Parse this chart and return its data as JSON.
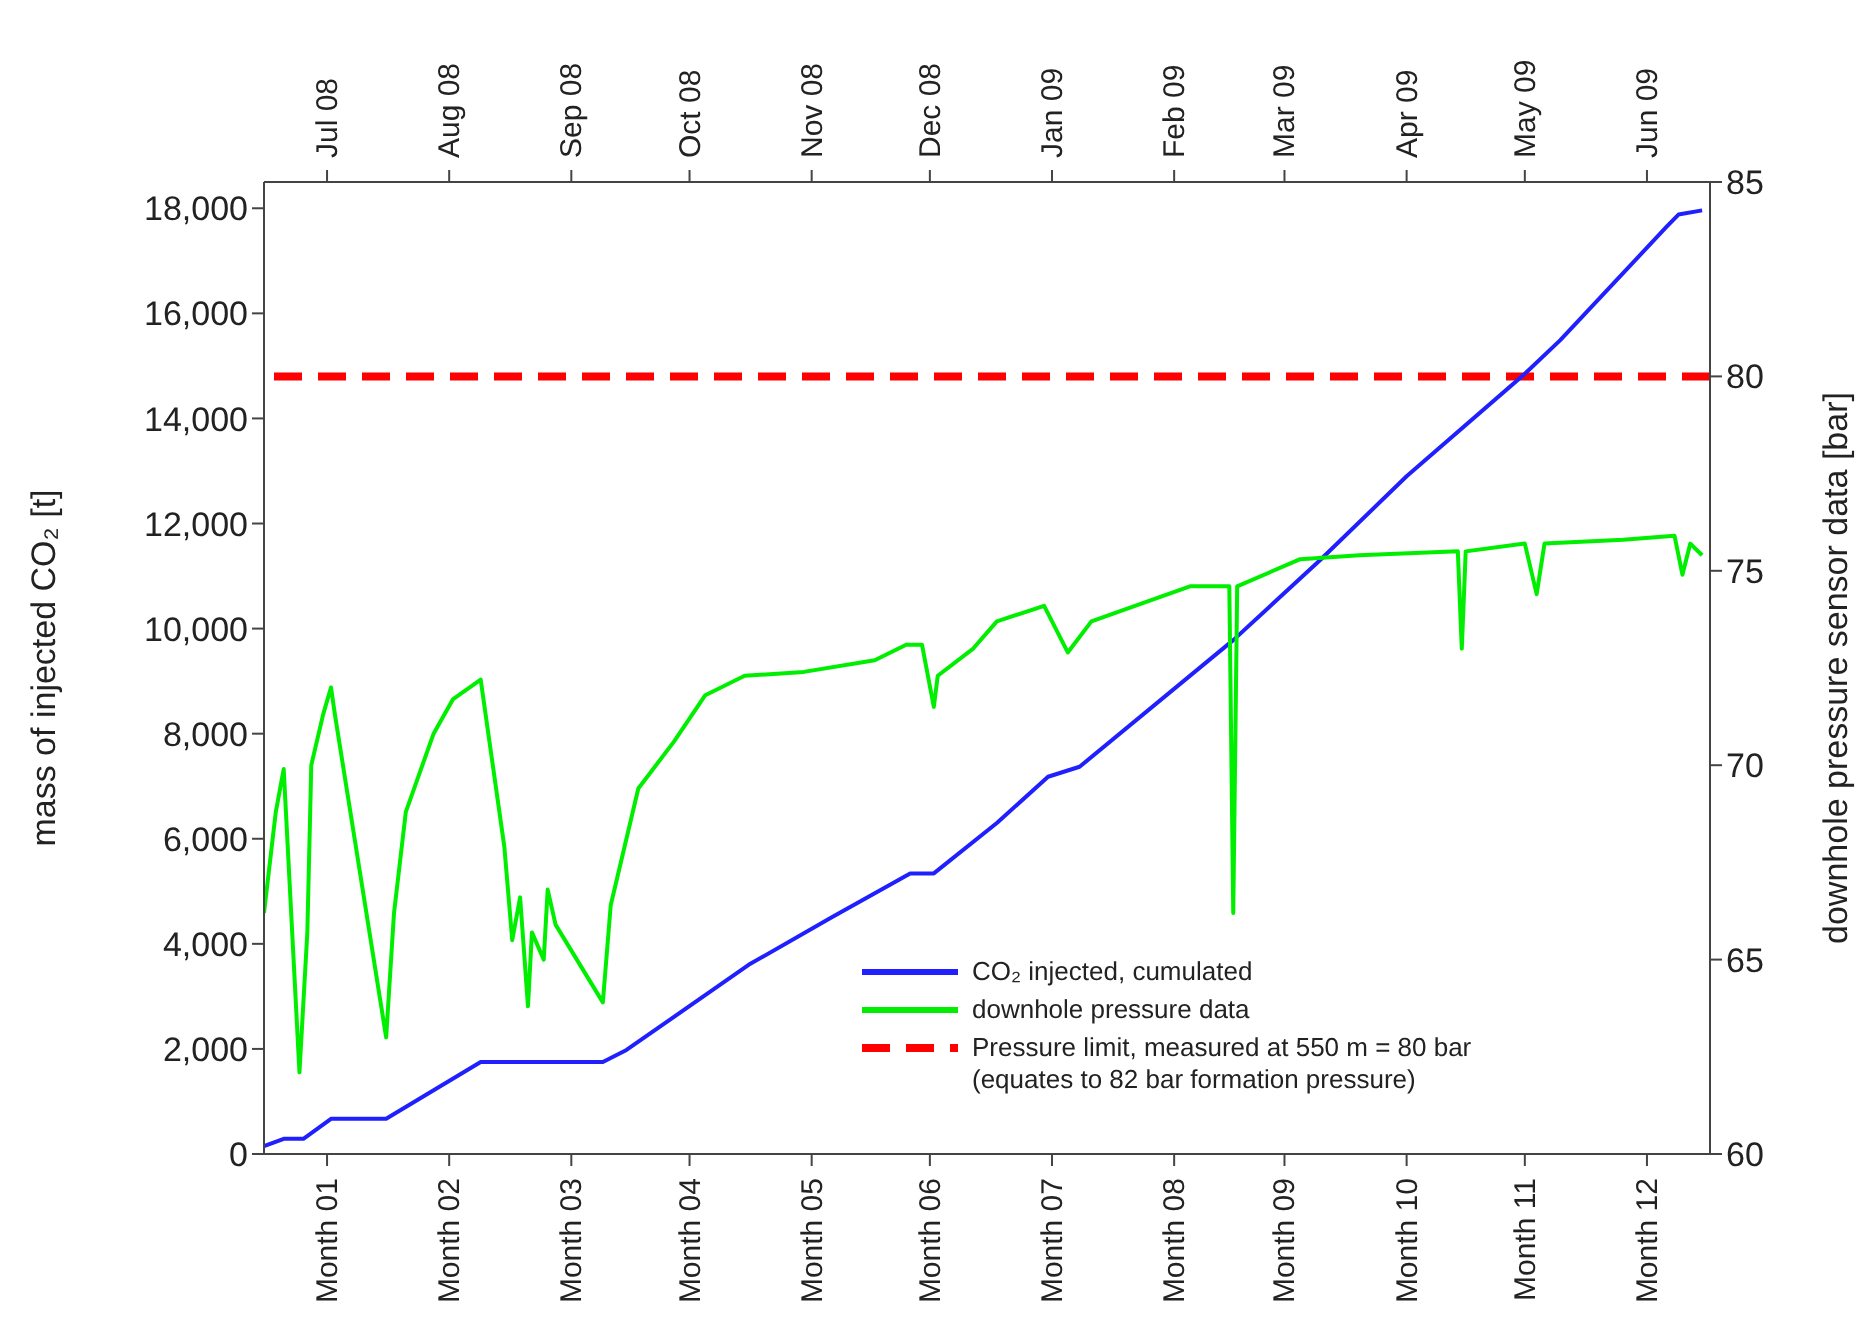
{
  "chart_data": {
    "type": "line",
    "ylabel": "mass of injected CO₂ [t]",
    "y2label": "downhole pressure sensor data [bar]",
    "xlim": [
      "2008-06-15",
      "2009-06-17"
    ],
    "xticks": [
      {
        "value": "2008-07-01",
        "label": "Month 01"
      },
      {
        "value": "2008-08-01",
        "label": "Month 02"
      },
      {
        "value": "2008-09-01",
        "label": "Month 03"
      },
      {
        "value": "2008-10-01",
        "label": "Month 04"
      },
      {
        "value": "2008-11-01",
        "label": "Month 05"
      },
      {
        "value": "2008-12-01",
        "label": "Month 06"
      },
      {
        "value": "2009-01-01",
        "label": "Month 07"
      },
      {
        "value": "2009-02-01",
        "label": "Month 08"
      },
      {
        "value": "2009-03-01",
        "label": "Month 09"
      },
      {
        "value": "2009-04-01",
        "label": "Month 10"
      },
      {
        "value": "2009-05-01",
        "label": "Month 11"
      },
      {
        "value": "2009-06-01",
        "label": "Month 12"
      }
    ],
    "x2lim": [
      "2008-06-15",
      "2009-06-17"
    ],
    "x2ticks": [
      {
        "value": "2008-07-01",
        "label": "Jul 08"
      },
      {
        "value": "2008-08-01",
        "label": "Aug 08"
      },
      {
        "value": "2008-09-01",
        "label": "Sep 08"
      },
      {
        "value": "2008-10-01",
        "label": "Oct 08"
      },
      {
        "value": "2008-11-01",
        "label": "Nov 08"
      },
      {
        "value": "2008-12-01",
        "label": "Dec 08"
      },
      {
        "value": "2009-01-01",
        "label": "Jan 09"
      },
      {
        "value": "2009-02-01",
        "label": "Feb 09"
      },
      {
        "value": "2009-03-01",
        "label": "Mar 09"
      },
      {
        "value": "2009-04-01",
        "label": "Apr 09"
      },
      {
        "value": "2009-05-01",
        "label": "May 09"
      },
      {
        "value": "2009-06-01",
        "label": "Jun 09"
      }
    ],
    "ylim": [
      0,
      18500
    ],
    "yticks": [
      0,
      {
        "value": 2000,
        "label": "2,000"
      },
      {
        "value": 4000,
        "label": "4,000"
      },
      {
        "value": 6000,
        "label": "6,000"
      },
      {
        "value": 8000,
        "label": "8,000"
      },
      {
        "value": 10000,
        "label": "10,000"
      },
      {
        "value": 12000,
        "label": "12,000"
      },
      {
        "value": 14000,
        "label": "14,000"
      },
      {
        "value": 16000,
        "label": "16,000"
      },
      {
        "value": 18000,
        "label": "18,000"
      }
    ],
    "y2lim": [
      60,
      85
    ],
    "y2ticks": [
      60,
      65,
      70,
      75,
      80,
      85
    ],
    "legend": "bottom right",
    "marker": "none",
    "series": [
      {
        "name": "CO₂ injected, cumulated",
        "color": "#2020ff",
        "x": [
          "2008-06-15",
          "2008-06-20",
          "2008-06-25",
          "2008-07-02",
          "2008-07-16",
          "2008-08-09",
          "2008-09-09",
          "2008-09-15",
          "2008-10-16",
          "2008-11-06",
          "2008-11-26",
          "2008-12-02",
          "2008-12-18",
          "2008-12-31",
          "2009-01-08",
          "2009-02-16",
          "2009-03-10",
          "2009-04-01",
          "2009-05-01",
          "2009-05-10",
          "2009-06-06",
          "2009-06-09",
          "2009-06-15"
        ],
        "values": [
          150,
          290,
          290,
          670,
          670,
          1750,
          1750,
          1980,
          3600,
          4500,
          5340,
          5340,
          6300,
          7180,
          7370,
          9780,
          11300,
          12900,
          14850,
          15490,
          17650,
          17880,
          17960
        ]
      },
      {
        "name": "downhole pressure data",
        "color": "#00ee00",
        "axis": "y2",
        "x": [
          "2008-06-15",
          "2008-06-18",
          "2008-06-20",
          "2008-06-24",
          "2008-06-26",
          "2008-06-27",
          "2008-06-30",
          "2008-07-02",
          "2008-07-03",
          "2008-07-16",
          "2008-07-18",
          "2008-07-21",
          "2008-07-28",
          "2008-08-02",
          "2008-08-09",
          "2008-08-15",
          "2008-08-17",
          "2008-08-19",
          "2008-08-21",
          "2008-08-22",
          "2008-08-25",
          "2008-08-26",
          "2008-08-28",
          "2008-09-09",
          "2008-09-11",
          "2008-09-18",
          "2008-09-27",
          "2008-10-05",
          "2008-10-15",
          "2008-10-30",
          "2008-11-17",
          "2008-11-25",
          "2008-11-29",
          "2008-12-02",
          "2008-12-03",
          "2008-12-12",
          "2008-12-18",
          "2008-12-30",
          "2009-01-05",
          "2009-01-11",
          "2009-02-05",
          "2009-02-15",
          "2009-02-16",
          "2009-02-17",
          "2009-03-05",
          "2009-03-20",
          "2009-04-14",
          "2009-04-15",
          "2009-04-16",
          "2009-05-01",
          "2009-05-04",
          "2009-05-06",
          "2009-05-26",
          "2009-06-08",
          "2009-06-10",
          "2009-06-12",
          "2009-06-15"
        ],
        "values": [
          66.2,
          68.8,
          69.9,
          62.1,
          65.7,
          70.0,
          71.3,
          72.0,
          71.3,
          63.0,
          66.2,
          68.8,
          70.8,
          71.7,
          72.2,
          67.9,
          65.5,
          66.6,
          63.8,
          65.7,
          65.0,
          66.8,
          65.9,
          63.9,
          66.4,
          69.4,
          70.6,
          71.8,
          72.3,
          72.4,
          72.7,
          73.1,
          73.1,
          71.5,
          72.3,
          73.0,
          73.7,
          74.1,
          72.9,
          73.7,
          74.6,
          74.6,
          66.2,
          74.6,
          75.3,
          75.4,
          75.5,
          73.0,
          75.5,
          75.7,
          74.4,
          75.7,
          75.8,
          75.9,
          74.9,
          75.7,
          75.4
        ]
      }
    ],
    "ref_lines": [
      {
        "axis": "y2",
        "value": 80,
        "label": "Pressure limit, measured at 550 m = 80 bar\n(equates to 82 bar formation pressure)",
        "color": "#ff0000",
        "line_style": "dashed"
      }
    ]
  }
}
